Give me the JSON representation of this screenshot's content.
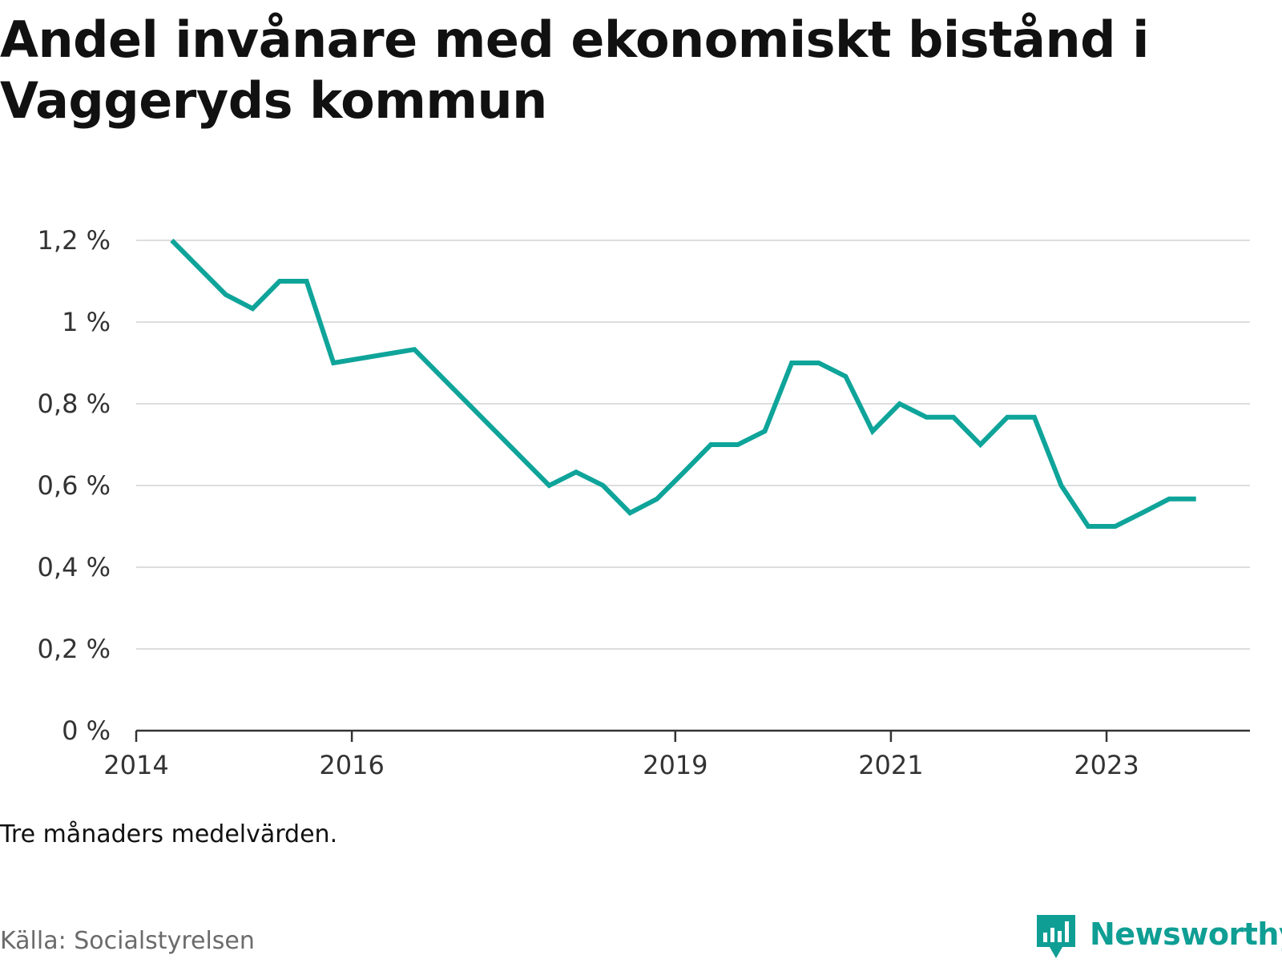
{
  "title": "Andel invånare med ekonomiskt bistånd i Vaggeryds kommun",
  "note": "Tre månaders medelvärden.",
  "source": "Källa: Socialstyrelsen",
  "brand": {
    "name": "Newsworthy",
    "icon": "bar-chart-logo-icon",
    "color": "#0f9e94"
  },
  "chart_data": {
    "type": "line",
    "title": "Andel invånare med ekonomiskt bistånd i Vaggeryds kommun",
    "xlabel": "",
    "ylabel": "",
    "line_color": "#0fa49a",
    "grid": true,
    "xlim": [
      2014.0,
      2024.33
    ],
    "ylim": [
      0,
      1.2
    ],
    "y_ticks": [
      {
        "value": 0,
        "label": "0 %"
      },
      {
        "value": 0.2,
        "label": "0,2 %"
      },
      {
        "value": 0.4,
        "label": "0,4 %"
      },
      {
        "value": 0.6,
        "label": "0,6 %"
      },
      {
        "value": 0.8,
        "label": "0,8 %"
      },
      {
        "value": 1.0,
        "label": "1 %"
      },
      {
        "value": 1.2,
        "label": "1,2 %"
      }
    ],
    "x_ticks": [
      {
        "value": 2014.0,
        "label": "2014"
      },
      {
        "value": 2016.0,
        "label": "2016"
      },
      {
        "value": 2019.0,
        "label": "2019"
      },
      {
        "value": 2021.0,
        "label": "2021"
      },
      {
        "value": 2023.0,
        "label": "2023"
      }
    ],
    "series": [
      {
        "name": "Andel invånare med ekonomiskt bistånd",
        "x": [
          2014.33,
          2014.83,
          2015.08,
          2015.33,
          2015.58,
          2015.83,
          2016.58,
          2017.83,
          2018.08,
          2018.33,
          2018.58,
          2018.83,
          2019.08,
          2019.33,
          2019.58,
          2019.83,
          2020.08,
          2020.33,
          2020.58,
          2020.83,
          2021.08,
          2021.33,
          2021.58,
          2021.83,
          2022.08,
          2022.33,
          2022.58,
          2022.83,
          2023.08,
          2023.33,
          2023.58,
          2023.83
        ],
        "values": [
          1.2,
          1.067,
          1.033,
          1.1,
          1.1,
          0.9,
          0.933,
          0.6,
          0.633,
          0.6,
          0.533,
          0.567,
          0.633,
          0.7,
          0.7,
          0.733,
          0.9,
          0.9,
          0.867,
          0.733,
          0.8,
          0.767,
          0.767,
          0.7,
          0.767,
          0.767,
          0.6,
          0.5,
          0.5,
          0.533,
          0.567,
          0.567
        ]
      }
    ]
  }
}
